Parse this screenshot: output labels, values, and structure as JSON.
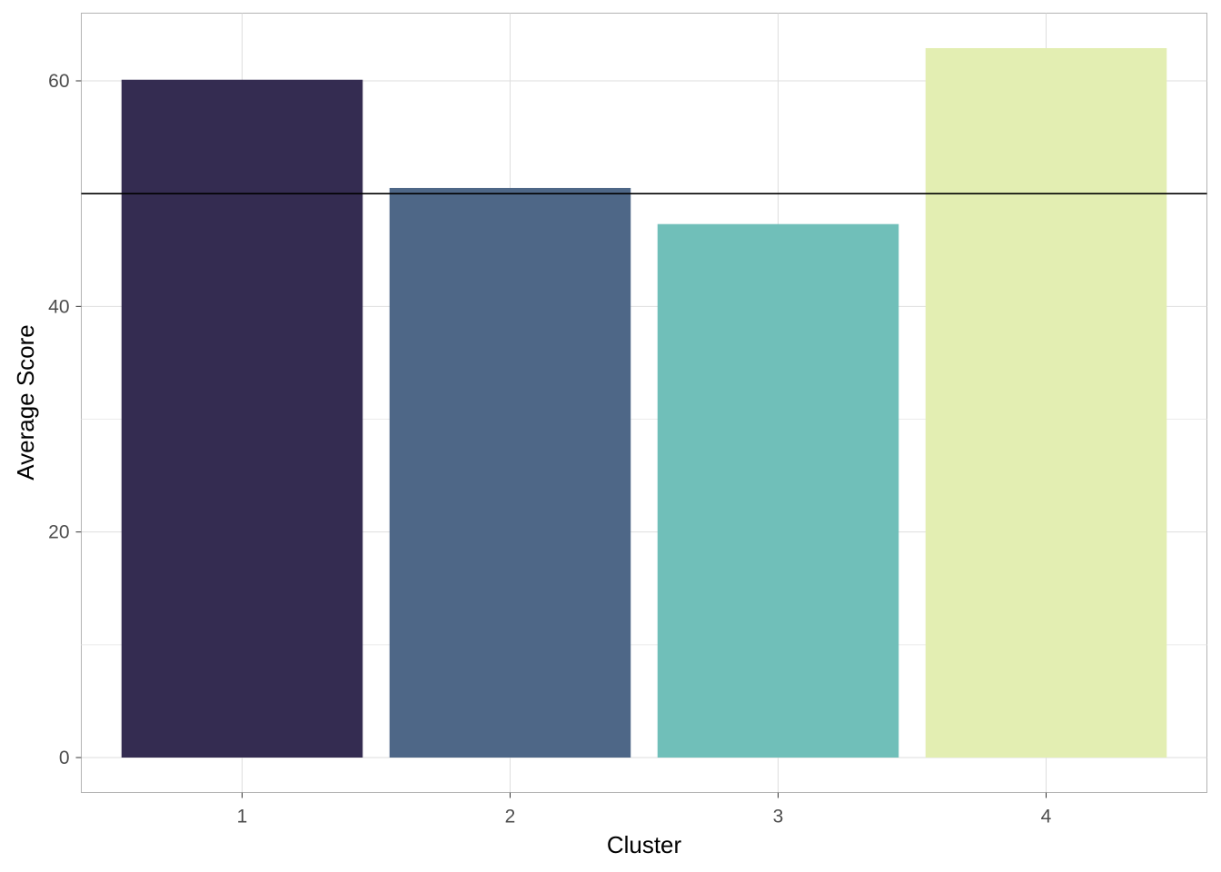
{
  "chart_data": {
    "type": "bar",
    "title": "",
    "xlabel": "Cluster",
    "ylabel": "Average Score",
    "categories": [
      "1",
      "2",
      "3",
      "4"
    ],
    "values": [
      60.1,
      50.5,
      47.3,
      62.9
    ],
    "bar_colors": [
      "#342C51",
      "#4E6787",
      "#70BFB9",
      "#E3EEB2"
    ],
    "reference_line": {
      "y": 50,
      "color": "#000000"
    },
    "ylim": [
      -3.1,
      66.0
    ],
    "y_ticks": [
      0,
      20,
      40,
      60
    ],
    "y_tick_labels": [
      "0",
      "20",
      "40",
      "60"
    ],
    "y_minor_ticks": [
      10,
      30,
      50
    ],
    "grid": true,
    "legend": "none"
  }
}
